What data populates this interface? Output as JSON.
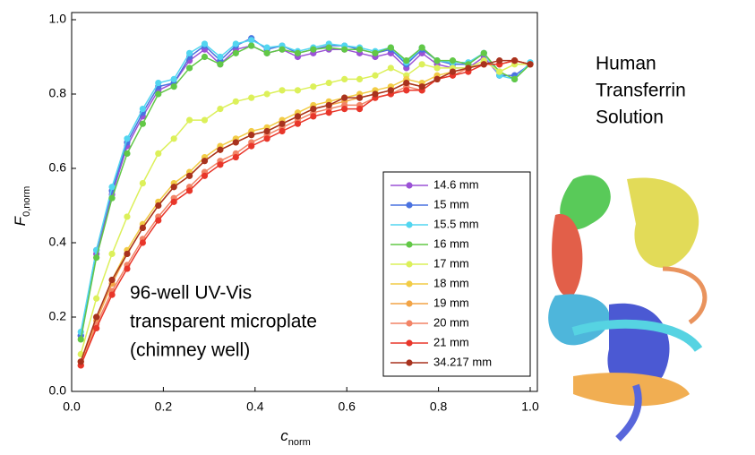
{
  "chart_data": {
    "type": "line",
    "x_label": {
      "main": "c",
      "sub": "norm"
    },
    "y_label": {
      "main": "F",
      "sub": "0,norm"
    },
    "annotations": [
      "Human",
      "Transferrin",
      "Solution",
      "96-well UV-Vis",
      "transparent microplate",
      "(chimney well)"
    ],
    "xlim": [
      0,
      1.0
    ],
    "ylim": [
      0,
      1.0
    ],
    "xticks": [
      {
        "value": 0,
        "label": "0.0"
      },
      0.2,
      0.4,
      0.6,
      0.8,
      {
        "value": 1,
        "label": "1.0"
      }
    ],
    "yticks": [
      {
        "value": 0,
        "label": "0.0"
      },
      0.2,
      0.4,
      0.6,
      0.8,
      {
        "value": 1,
        "label": "1.0"
      }
    ],
    "legend": "lower right",
    "x": [
      0.02,
      0.054,
      0.088,
      0.121,
      0.155,
      0.189,
      0.223,
      0.257,
      0.29,
      0.324,
      0.358,
      0.392,
      0.426,
      0.459,
      0.493,
      0.527,
      0.561,
      0.595,
      0.628,
      0.662,
      0.696,
      0.73,
      0.764,
      0.797,
      0.831,
      0.865,
      0.899,
      0.933,
      0.966,
      1.0
    ],
    "series": [
      {
        "name": "14.6 mm",
        "color": "#9b52d6",
        "values": [
          0.15,
          0.37,
          0.53,
          0.66,
          0.74,
          0.81,
          0.83,
          0.89,
          0.92,
          0.88,
          0.92,
          0.93,
          0.91,
          0.92,
          0.9,
          0.91,
          0.92,
          0.92,
          0.91,
          0.9,
          0.91,
          0.87,
          0.91,
          0.88,
          0.87,
          0.87,
          0.9,
          0.85,
          0.85,
          0.88
        ]
      },
      {
        "name": "15 mm",
        "color": "#4a72e0",
        "values": [
          0.15,
          0.38,
          0.54,
          0.67,
          0.75,
          0.82,
          0.83,
          0.9,
          0.93,
          0.89,
          0.93,
          0.95,
          0.92,
          0.93,
          0.91,
          0.92,
          0.93,
          0.93,
          0.92,
          0.91,
          0.92,
          0.88,
          0.92,
          0.89,
          0.88,
          0.88,
          0.91,
          0.85,
          0.85,
          0.88
        ]
      },
      {
        "name": "15.5 mm",
        "color": "#52d6f0",
        "values": [
          0.16,
          0.38,
          0.55,
          0.68,
          0.76,
          0.83,
          0.84,
          0.91,
          0.935,
          0.9,
          0.935,
          0.945,
          0.925,
          0.93,
          0.915,
          0.925,
          0.935,
          0.93,
          0.925,
          0.915,
          0.925,
          0.885,
          0.925,
          0.89,
          0.885,
          0.885,
          0.91,
          0.85,
          0.84,
          0.885
        ]
      },
      {
        "name": "16 mm",
        "color": "#62c846",
        "values": [
          0.14,
          0.36,
          0.52,
          0.64,
          0.72,
          0.8,
          0.82,
          0.87,
          0.9,
          0.88,
          0.91,
          0.93,
          0.91,
          0.92,
          0.91,
          0.92,
          0.925,
          0.92,
          0.92,
          0.91,
          0.925,
          0.89,
          0.925,
          0.89,
          0.89,
          0.88,
          0.91,
          0.86,
          0.84,
          0.88
        ]
      },
      {
        "name": "17 mm",
        "color": "#dcf05a",
        "values": [
          0.1,
          0.25,
          0.37,
          0.47,
          0.56,
          0.64,
          0.68,
          0.73,
          0.73,
          0.76,
          0.78,
          0.79,
          0.8,
          0.81,
          0.81,
          0.82,
          0.83,
          0.84,
          0.84,
          0.85,
          0.87,
          0.85,
          0.88,
          0.87,
          0.87,
          0.87,
          0.89,
          0.86,
          0.88,
          0.88
        ]
      },
      {
        "name": "18 mm",
        "color": "#f2cc46",
        "values": [
          0.08,
          0.2,
          0.3,
          0.38,
          0.45,
          0.51,
          0.56,
          0.59,
          0.63,
          0.66,
          0.68,
          0.7,
          0.71,
          0.73,
          0.75,
          0.77,
          0.78,
          0.79,
          0.8,
          0.81,
          0.82,
          0.84,
          0.83,
          0.85,
          0.86,
          0.87,
          0.88,
          0.88,
          0.89,
          0.88
        ]
      },
      {
        "name": "19 mm",
        "color": "#f2a446",
        "values": [
          0.08,
          0.19,
          0.29,
          0.37,
          0.44,
          0.5,
          0.55,
          0.58,
          0.62,
          0.65,
          0.67,
          0.69,
          0.7,
          0.72,
          0.74,
          0.76,
          0.77,
          0.78,
          0.79,
          0.8,
          0.81,
          0.83,
          0.82,
          0.84,
          0.86,
          0.87,
          0.88,
          0.88,
          0.89,
          0.88
        ]
      },
      {
        "name": "20 mm",
        "color": "#f28466",
        "values": [
          0.07,
          0.18,
          0.27,
          0.34,
          0.41,
          0.47,
          0.52,
          0.55,
          0.59,
          0.62,
          0.64,
          0.67,
          0.69,
          0.71,
          0.73,
          0.75,
          0.76,
          0.77,
          0.77,
          0.79,
          0.8,
          0.82,
          0.81,
          0.84,
          0.85,
          0.87,
          0.88,
          0.88,
          0.89,
          0.88
        ]
      },
      {
        "name": "21 mm",
        "color": "#e8362a",
        "values": [
          0.07,
          0.17,
          0.26,
          0.33,
          0.4,
          0.46,
          0.51,
          0.54,
          0.58,
          0.61,
          0.63,
          0.66,
          0.68,
          0.7,
          0.72,
          0.74,
          0.75,
          0.76,
          0.76,
          0.79,
          0.8,
          0.81,
          0.81,
          0.84,
          0.85,
          0.86,
          0.88,
          0.88,
          0.89,
          0.88
        ]
      },
      {
        "name": "34.217 mm",
        "color": "#a8321e",
        "values": [
          0.08,
          0.2,
          0.3,
          0.37,
          0.44,
          0.5,
          0.55,
          0.58,
          0.62,
          0.65,
          0.67,
          0.69,
          0.7,
          0.72,
          0.74,
          0.76,
          0.77,
          0.79,
          0.79,
          0.8,
          0.81,
          0.83,
          0.82,
          0.84,
          0.86,
          0.87,
          0.88,
          0.89,
          0.89,
          0.88
        ]
      }
    ]
  }
}
